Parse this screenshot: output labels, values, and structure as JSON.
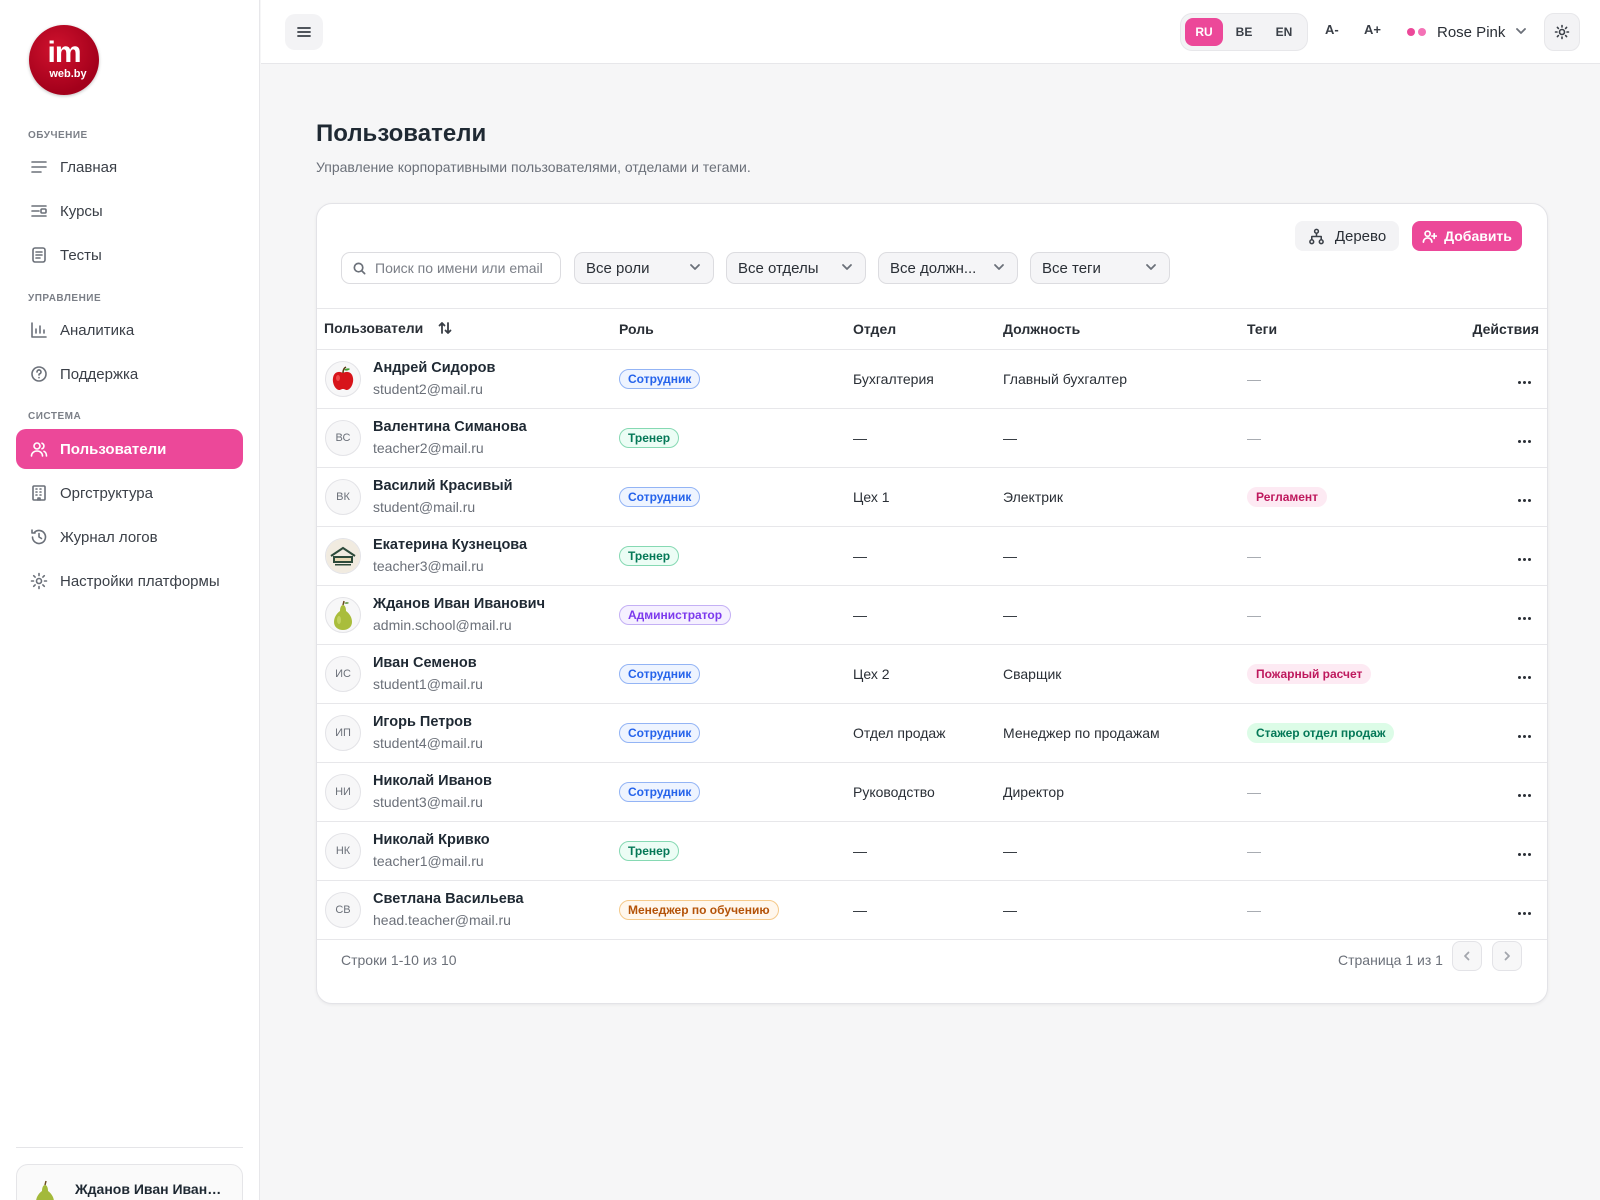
{
  "brand": {
    "logo_main": "im",
    "logo_sub": "web.by",
    "color": "#c00d29"
  },
  "accent_color": "#ec4899",
  "sidebar": {
    "sections": [
      {
        "label": "ОБУЧЕНИЕ"
      },
      {
        "label": "УПРАВЛЕНИЕ"
      },
      {
        "label": "СИСТЕМА"
      }
    ],
    "items": [
      {
        "label": "Главная",
        "icon": "home-lines-icon"
      },
      {
        "label": "Курсы",
        "icon": "courses-icon"
      },
      {
        "label": "Тесты",
        "icon": "tests-icon"
      },
      {
        "label": "Аналитика",
        "icon": "analytics-icon"
      },
      {
        "label": "Поддержка",
        "icon": "help-circle-icon"
      },
      {
        "label": "Пользователи",
        "icon": "users-icon",
        "active": true
      },
      {
        "label": "Оргструктура",
        "icon": "building-icon"
      },
      {
        "label": "Журнал логов",
        "icon": "history-icon"
      },
      {
        "label": "Настройки платформы",
        "icon": "settings-icon"
      }
    ],
    "current_user": {
      "name": "Жданов Иван Иванович"
    }
  },
  "header": {
    "languages": [
      "RU",
      "BE",
      "EN"
    ],
    "active_language": "RU",
    "font_decrease": "A-",
    "font_increase": "A+",
    "theme": {
      "label": "Rose Pink",
      "dots": [
        "#ec4899",
        "#f472b6"
      ]
    }
  },
  "page": {
    "title": "Пользователи",
    "subtitle": "Управление корпоративными пользователями, отделами и тегами."
  },
  "toolbar": {
    "tree_label": "Дерево",
    "add_label": "Добавить",
    "search_placeholder": "Поиск по имени или email",
    "filters": [
      "Все роли",
      "Все отделы",
      "Все должн...",
      "Все теги"
    ]
  },
  "table": {
    "columns": [
      "Пользователи",
      "Роль",
      "Отдел",
      "Должность",
      "Теги",
      "Действия"
    ],
    "rows": [
      {
        "initials": "",
        "avatar": "apple",
        "name": "Андрей Сидоров",
        "email": "student2@mail.ru",
        "role": "Сотрудник",
        "role_type": "employee",
        "department": "Бухгалтерия",
        "position": "Главный бухгалтер",
        "tag": "—",
        "tag_type": ""
      },
      {
        "initials": "ВС",
        "avatar": "",
        "name": "Валентина Симанова",
        "email": "teacher2@mail.ru",
        "role": "Тренер",
        "role_type": "trainer",
        "department": "—",
        "position": "—",
        "tag": "—",
        "tag_type": ""
      },
      {
        "initials": "ВК",
        "avatar": "",
        "name": "Василий Красивый",
        "email": "student@mail.ru",
        "role": "Сотрудник",
        "role_type": "employee",
        "department": "Цех 1",
        "position": "Электрик",
        "tag": "Регламент",
        "tag_type": "pink"
      },
      {
        "initials": "",
        "avatar": "logo",
        "name": "Екатерина Кузнецова",
        "email": "teacher3@mail.ru",
        "role": "Тренер",
        "role_type": "trainer",
        "department": "—",
        "position": "—",
        "tag": "—",
        "tag_type": ""
      },
      {
        "initials": "",
        "avatar": "pear",
        "name": "Жданов Иван Иванович",
        "email": "admin.school@mail.ru",
        "role": "Администратор",
        "role_type": "admin",
        "department": "—",
        "position": "—",
        "tag": "—",
        "tag_type": ""
      },
      {
        "initials": "ИС",
        "avatar": "",
        "name": "Иван Семенов",
        "email": "student1@mail.ru",
        "role": "Сотрудник",
        "role_type": "employee",
        "department": "Цех 2",
        "position": "Сварщик",
        "tag": "Пожарный расчет",
        "tag_type": "pink"
      },
      {
        "initials": "ИП",
        "avatar": "",
        "name": "Игорь Петров",
        "email": "student4@mail.ru",
        "role": "Сотрудник",
        "role_type": "employee",
        "department": "Отдел продаж",
        "position": "Менеджер по продажам",
        "tag": "Стажер отдел продаж",
        "tag_type": "green"
      },
      {
        "initials": "НИ",
        "avatar": "",
        "name": "Николай Иванов",
        "email": "student3@mail.ru",
        "role": "Сотрудник",
        "role_type": "employee",
        "department": "Руководство",
        "position": "Директор",
        "tag": "—",
        "tag_type": ""
      },
      {
        "initials": "НК",
        "avatar": "",
        "name": "Николай Кривко",
        "email": "teacher1@mail.ru",
        "role": "Тренер",
        "role_type": "trainer",
        "department": "—",
        "position": "—",
        "tag": "—",
        "tag_type": ""
      },
      {
        "initials": "СВ",
        "avatar": "",
        "name": "Светлана Васильева",
        "email": "head.teacher@mail.ru",
        "role": "Менеджер по обучению",
        "role_type": "manager",
        "department": "—",
        "position": "—",
        "tag": "—",
        "tag_type": ""
      }
    ]
  },
  "badge_colors": {
    "employee": {
      "text": "#2563eb",
      "bg": "#eef4ff",
      "border": "#93b4f5"
    },
    "trainer": {
      "text": "#047857",
      "bg": "#ecfdf5",
      "border": "#86d9b3"
    },
    "admin": {
      "text": "#7c3aed",
      "bg": "#f5f0ff",
      "border": "#c4b0f5"
    },
    "manager": {
      "text": "#b45309",
      "bg": "#fff7ed",
      "border": "#f5c98a"
    },
    "pink": {
      "text": "#be185d",
      "bg": "#fdeaf3",
      "border": "#fdeaf3"
    },
    "green": {
      "text": "#047857",
      "bg": "#dcfce7",
      "border": "#dcfce7"
    }
  },
  "footer": {
    "rows_info": "Строки 1-10 из 10",
    "page_info": "Страница 1 из 1"
  }
}
